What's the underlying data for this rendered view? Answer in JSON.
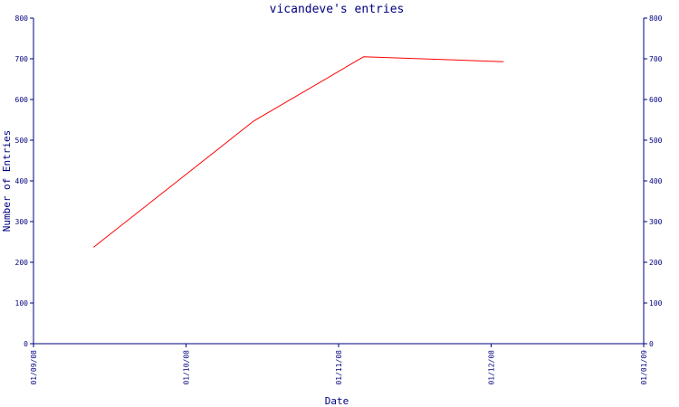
{
  "chart_data": {
    "type": "line",
    "title": "vicandeve's entries",
    "xlabel": "Date",
    "ylabel": "Number of Entries",
    "x_ticks": [
      "01/09/08",
      "01/10/08",
      "01/11/08",
      "01/12/08",
      "01/01/09"
    ],
    "xlim": [
      "2008-09-01",
      "2009-01-01"
    ],
    "ylim": [
      0,
      800
    ],
    "y_ticks": [
      0,
      100,
      200,
      300,
      400,
      500,
      600,
      700,
      800
    ],
    "right_axis": true,
    "grid": false,
    "series": [
      {
        "color": "#ff0000",
        "points": [
          {
            "x": "2008-09-13",
            "y": 237
          },
          {
            "x": "2008-10-15",
            "y": 547
          },
          {
            "x": "2008-11-06",
            "y": 705
          },
          {
            "x": "2008-12-04",
            "y": 693
          }
        ]
      }
    ]
  }
}
